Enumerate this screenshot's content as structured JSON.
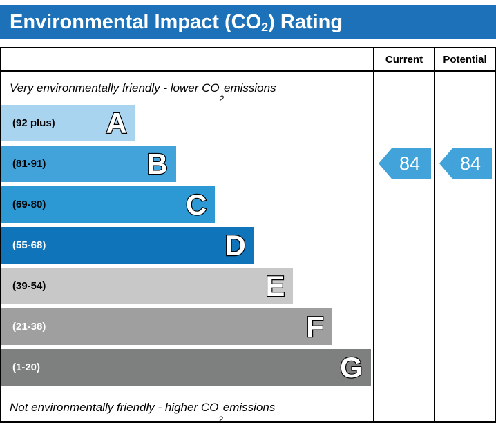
{
  "page": {
    "title_prefix": "Environmental Impact (CO",
    "title_sub": "2",
    "title_suffix": ") Rating",
    "title_bg": "#1d71b8"
  },
  "header": {
    "current": "Current",
    "potential": "Potential"
  },
  "captions": {
    "top_prefix": "Very environmentally friendly - lower CO",
    "top_sub": "2",
    "top_suffix": " emissions",
    "bottom_prefix": "Not environmentally friendly - higher CO",
    "bottom_sub": "2",
    "bottom_suffix": " emissions"
  },
  "chart_data": {
    "type": "bar",
    "title": "Environmental Impact (CO2) Rating",
    "bands": [
      {
        "letter": "A",
        "range": "(92 plus)",
        "color": "#a9d4ef",
        "width_pct": 36,
        "range_text_color": "#000000"
      },
      {
        "letter": "B",
        "range": "(81-91)",
        "color": "#41a3d9",
        "width_pct": 47,
        "range_text_color": "#000000"
      },
      {
        "letter": "C",
        "range": "(69-80)",
        "color": "#2d99d4",
        "width_pct": 57.5,
        "range_text_color": "#000000"
      },
      {
        "letter": "D",
        "range": "(55-68)",
        "color": "#1074ba",
        "width_pct": 68,
        "range_text_color": "#ffffff"
      },
      {
        "letter": "E",
        "range": "(39-54)",
        "color": "#c8c8c8",
        "width_pct": 78.5,
        "range_text_color": "#000000"
      },
      {
        "letter": "F",
        "range": "(21-38)",
        "color": "#9f9f9f",
        "width_pct": 89,
        "range_text_color": "#ffffff"
      },
      {
        "letter": "G",
        "range": "(1-20)",
        "color": "#7e7f7f",
        "width_pct": 99.4,
        "range_text_color": "#ffffff"
      }
    ],
    "current": {
      "value": "84",
      "band_index": 1
    },
    "potential": {
      "value": "84",
      "band_index": 1
    },
    "arrow_color": "#41a3d9"
  }
}
